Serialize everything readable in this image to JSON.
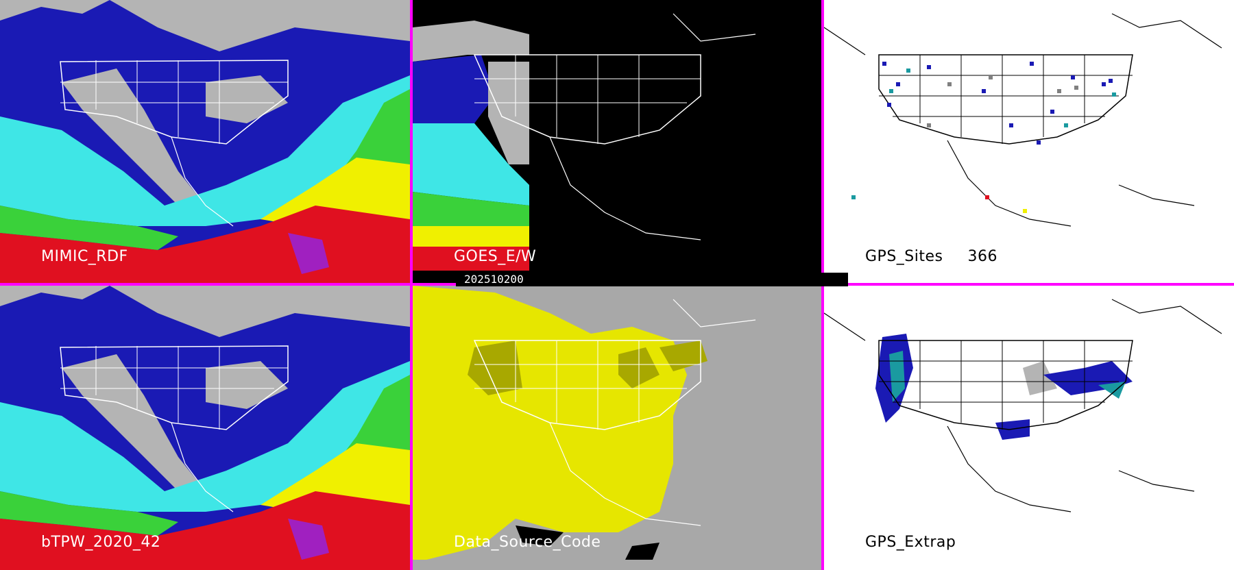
{
  "timestamp": "202510200",
  "panels": {
    "mimic": {
      "label": "MIMIC_RDF"
    },
    "goes": {
      "label": "GOES_E/W"
    },
    "gps_sites": {
      "label": "GPS_Sites",
      "count": "366"
    },
    "btpw": {
      "label": "bTPW_2020_42"
    },
    "source": {
      "label": "Data_Source_Code"
    },
    "gps_extrap": {
      "label": "GPS_Extrap"
    }
  },
  "colors": {
    "divider": "#ff00ff",
    "gray": "#b4b4b4",
    "blue": "#1a1ab4",
    "cyan": "#3fe6e6",
    "green": "#3ad13a",
    "yellow": "#f0f000",
    "red": "#e01020",
    "source_yellow": "#e6e600",
    "source_olive": "#a8a800",
    "source_gray": "#a8a8a8"
  }
}
